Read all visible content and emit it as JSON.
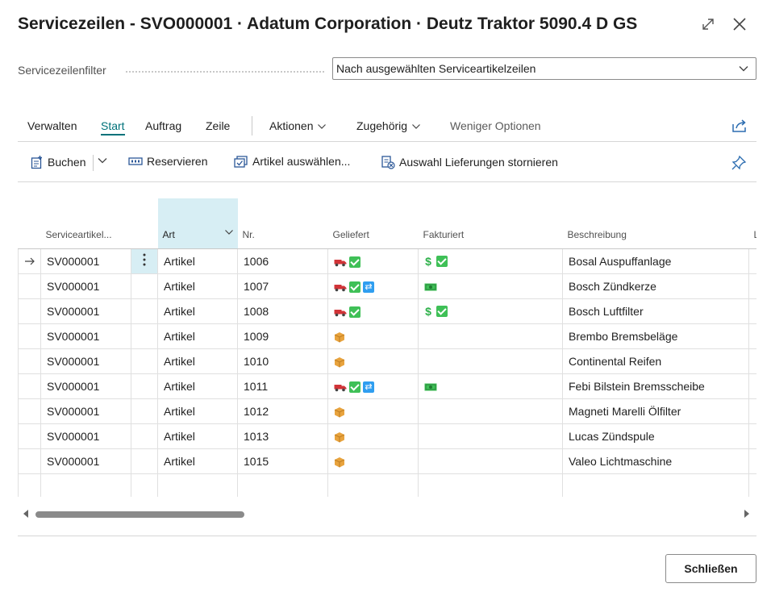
{
  "window": {
    "title": "Servicezeilen - SVO000001 · Adatum Corporation · Deutz Traktor 5090.4 D GS",
    "expand_icon": "expand-icon",
    "close_icon": "close-icon"
  },
  "filter": {
    "label": "Servicezeilenfilter",
    "value": "Nach ausgewählten Serviceartikelzeilen"
  },
  "tabs": [
    {
      "label": "Verwalten",
      "active": false
    },
    {
      "label": "Start",
      "active": true
    },
    {
      "label": "Auftrag",
      "active": false
    },
    {
      "label": "Zeile",
      "active": false
    },
    {
      "label": "Aktionen",
      "active": false,
      "dropdown": true
    },
    {
      "label": "Zugehörig",
      "active": false,
      "dropdown": true
    },
    {
      "label": "Weniger Optionen",
      "active": false
    }
  ],
  "actions": {
    "post": "Buchen",
    "reserve": "Reservieren",
    "select_items": "Artikel auswählen...",
    "cancel_shipments": "Auswahl Lieferungen stornieren"
  },
  "grid": {
    "columns": [
      "Serviceartikel...",
      "Art",
      "Nr.",
      "Geliefert",
      "Fakturiert",
      "Beschreibung",
      "L"
    ],
    "rows": [
      {
        "item": "SV000001",
        "art": "Artikel",
        "nr": "1006",
        "desc": "Bosal Auspuffanlage",
        "delivered": [
          "truck",
          "check"
        ],
        "invoiced": [
          "dollar",
          "check"
        ],
        "current": true
      },
      {
        "item": "SV000001",
        "art": "Artikel",
        "nr": "1007",
        "desc": "Bosch Zündkerze",
        "delivered": [
          "truck",
          "check",
          "sync"
        ],
        "invoiced": [
          "money"
        ]
      },
      {
        "item": "SV000001",
        "art": "Artikel",
        "nr": "1008",
        "desc": "Bosch Luftfilter",
        "delivered": [
          "truck",
          "check"
        ],
        "invoiced": [
          "dollar",
          "check"
        ]
      },
      {
        "item": "SV000001",
        "art": "Artikel",
        "nr": "1009",
        "desc": "Brembo Bremsbeläge",
        "delivered": [
          "box"
        ],
        "invoiced": []
      },
      {
        "item": "SV000001",
        "art": "Artikel",
        "nr": "1010",
        "desc": "Continental Reifen",
        "delivered": [
          "box"
        ],
        "invoiced": []
      },
      {
        "item": "SV000001",
        "art": "Artikel",
        "nr": "1011",
        "desc": "Febi Bilstein Bremsscheibe",
        "delivered": [
          "truck",
          "check",
          "sync"
        ],
        "invoiced": [
          "money"
        ]
      },
      {
        "item": "SV000001",
        "art": "Artikel",
        "nr": "1012",
        "desc": "Magneti Marelli Ölfilter",
        "delivered": [
          "box"
        ],
        "invoiced": []
      },
      {
        "item": "SV000001",
        "art": "Artikel",
        "nr": "1013",
        "desc": "Lucas Zündspule",
        "delivered": [
          "box"
        ],
        "invoiced": []
      },
      {
        "item": "SV000001",
        "art": "Artikel",
        "nr": "1015",
        "desc": "Valeo Lichtmaschine",
        "delivered": [
          "box"
        ],
        "invoiced": []
      }
    ]
  },
  "footer": {
    "close_label": "Schließen"
  },
  "colors": {
    "accent": "#00727a",
    "selected_column": "#d7eef4",
    "check": "#3fc057",
    "sync": "#2f9ef0",
    "truck": "#d13438",
    "box": "#e8a33d"
  }
}
